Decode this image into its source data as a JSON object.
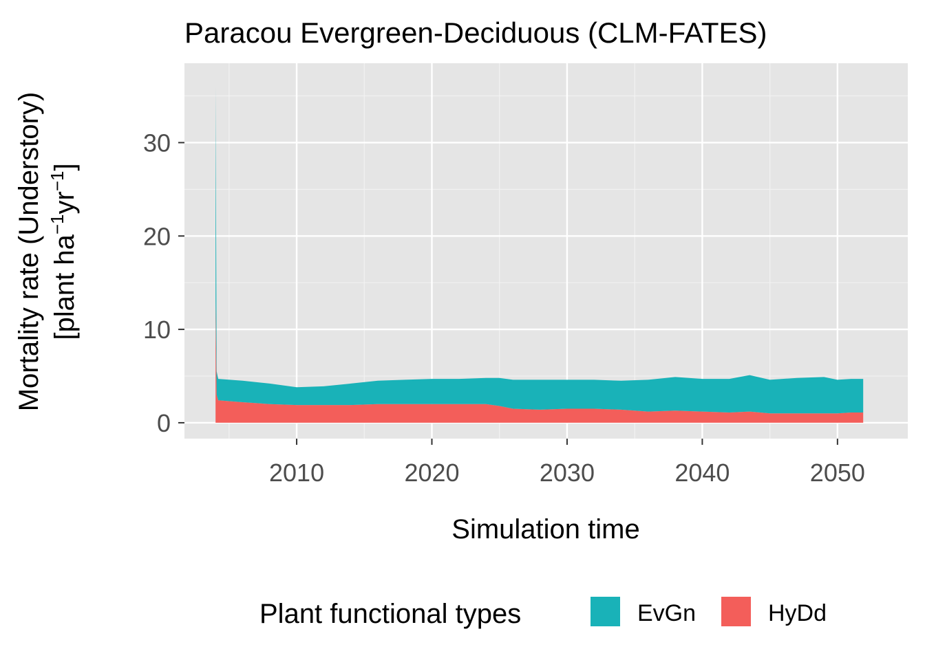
{
  "chart_data": {
    "type": "area",
    "stacked": true,
    "title": "Paracou Evergreen-Deciduous (CLM-FATES)",
    "xlabel": "Simulation time",
    "ylabel_line1": "Mortality rate (Understory)",
    "ylabel_line2_parts": [
      "[plant ha",
      "−1",
      "yr",
      "−1",
      "]"
    ],
    "xlim": [
      2001.7,
      2055.2
    ],
    "ylim": [
      -1.7,
      38.5
    ],
    "x_ticks": [
      2010,
      2020,
      2030,
      2040,
      2050
    ],
    "x_tick_labels": [
      "2010",
      "2020",
      "2030",
      "2040",
      "2050"
    ],
    "y_ticks": [
      0,
      10,
      20,
      30
    ],
    "y_tick_labels": [
      "0",
      "10",
      "20",
      "30"
    ],
    "grid": true,
    "legend": {
      "title": "Plant functional types",
      "position": "bottom",
      "entries": [
        {
          "label": "EvGn",
          "color": "#19B2B8"
        },
        {
          "label": "HyDd",
          "color": "#F35E5A"
        }
      ]
    },
    "series": [
      {
        "name": "HyDd",
        "color": "#F35E5A",
        "x": [
          2004.0,
          2004.08,
          2004.2,
          2006.0,
          2008.0,
          2010.0,
          2012.0,
          2014.0,
          2016.0,
          2018.0,
          2020.0,
          2022.0,
          2024.0,
          2025.0,
          2026.0,
          2028.0,
          2030.0,
          2032.0,
          2034.0,
          2036.0,
          2038.0,
          2040.0,
          2042.0,
          2043.5,
          2045.0,
          2047.0,
          2049.0,
          2050.0,
          2051.0,
          2051.9
        ],
        "y": [
          13.0,
          3.0,
          2.4,
          2.2,
          2.0,
          1.9,
          1.9,
          1.9,
          2.0,
          2.0,
          2.0,
          2.0,
          2.0,
          1.8,
          1.5,
          1.4,
          1.5,
          1.5,
          1.4,
          1.2,
          1.3,
          1.2,
          1.1,
          1.2,
          1.0,
          1.0,
          1.0,
          1.0,
          1.1,
          1.1
        ]
      },
      {
        "name": "EvGn",
        "color": "#19B2B8",
        "x": [
          2004.0,
          2004.08,
          2004.2,
          2006.0,
          2008.0,
          2010.0,
          2012.0,
          2014.0,
          2016.0,
          2018.0,
          2020.0,
          2022.0,
          2024.0,
          2025.0,
          2026.0,
          2028.0,
          2030.0,
          2032.0,
          2034.0,
          2036.0,
          2038.0,
          2040.0,
          2042.0,
          2043.5,
          2045.0,
          2047.0,
          2049.0,
          2050.0,
          2051.0,
          2051.9
        ],
        "y": [
          23.0,
          2.5,
          2.3,
          2.3,
          2.2,
          1.9,
          2.0,
          2.3,
          2.5,
          2.6,
          2.7,
          2.7,
          2.8,
          3.0,
          3.1,
          3.2,
          3.1,
          3.1,
          3.1,
          3.4,
          3.6,
          3.5,
          3.6,
          3.9,
          3.6,
          3.8,
          3.9,
          3.6,
          3.6,
          3.6
        ]
      }
    ]
  }
}
